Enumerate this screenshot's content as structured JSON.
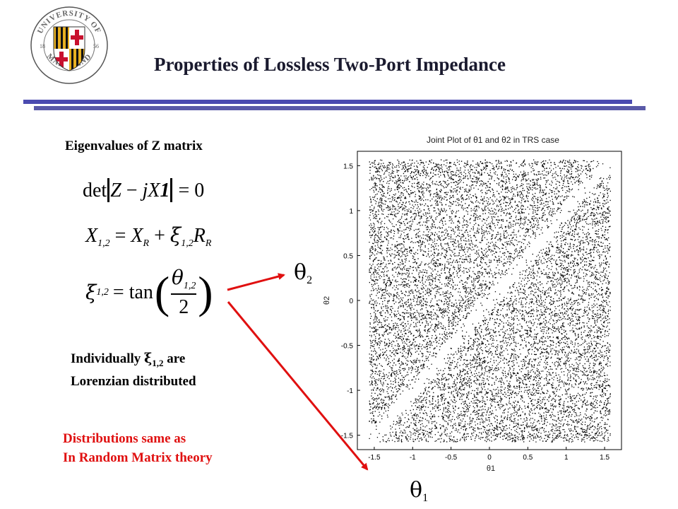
{
  "logo": {
    "top_text": "UNIVERSITY OF",
    "bottom_text": "MARYLAND",
    "year_left": "18",
    "year_right": "56"
  },
  "slide": {
    "title": "Properties of Lossless Two-Port Impedance",
    "rule_color": "#4b4bb0"
  },
  "left": {
    "heading": "Eigenvalues of Z matrix",
    "eq1": {
      "lhs": "det",
      "z": "Z",
      "minus": "−",
      "jx": "jX",
      "one": "1",
      "rhs": "= 0"
    },
    "eq2": {
      "x": "X",
      "sub12": "1,2",
      "eq": "=",
      "xr": "X",
      "subr": "R",
      "plus": "+",
      "xi": "ξ",
      "sub12b": "1,2",
      "r": "R",
      "subr2": "R"
    },
    "eq3": {
      "xi": "ξ",
      "sub12": "1,2",
      "eq": "= tan",
      "theta": "θ",
      "sub12b": "1,2",
      "den": "2"
    },
    "desc_line1_a": "Individually ",
    "desc_xi": "ξ",
    "desc_sub": "1,2",
    "desc_line1_b": "  are",
    "desc_line2": "Lorenzian distributed",
    "note_line1": "Distributions same as",
    "note_line2": "In Random Matrix theory",
    "note_color": "#e01010"
  },
  "labels": {
    "theta2": "θ",
    "theta2_sub": "2",
    "theta1": "θ",
    "theta1_sub": "1"
  },
  "chart_data": {
    "type": "scatter",
    "title": "Joint Plot of θ1 and θ2 in TRS case",
    "xlabel": "θ1",
    "ylabel": "θ2",
    "xlim": [
      -1.57,
      1.57
    ],
    "ylim": [
      -1.57,
      1.57
    ],
    "xticks": [
      -1.5,
      -1,
      -0.5,
      0,
      0.5,
      1,
      1.5
    ],
    "yticks": [
      -1.5,
      -1,
      -0.5,
      0,
      0.5,
      1,
      1.5
    ],
    "xtick_labels": [
      "-1.5",
      "-1",
      "-0.5",
      "0",
      "0.5",
      "1",
      "1.5"
    ],
    "ytick_labels": [
      "-1.5",
      "-1",
      "-0.5",
      "0",
      "0.5",
      "1",
      "1.5"
    ],
    "grid": false,
    "point_color": "#000000",
    "description_of_density": "points dense everywhere except a sparse diagonal band along θ1 = θ2"
  }
}
